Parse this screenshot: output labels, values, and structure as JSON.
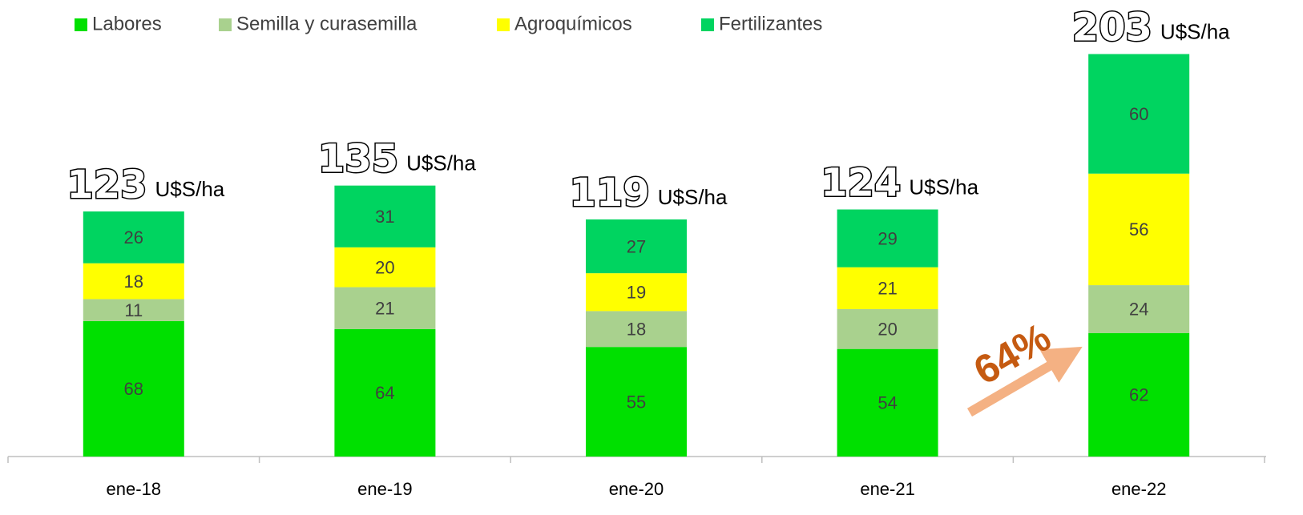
{
  "chart_data": {
    "type": "stacked_bar",
    "categories": [
      "ene-18",
      "ene-19",
      "ene-20",
      "ene-21",
      "ene-22"
    ],
    "series": [
      {
        "name": "Labores",
        "color": "#00e000",
        "values": [
          68,
          64,
          55,
          54,
          62
        ]
      },
      {
        "name": "Semilla y curasemilla",
        "color": "#a9d18e",
        "values": [
          11,
          21,
          18,
          20,
          24
        ]
      },
      {
        "name": "Agroquímicos",
        "color": "#ffff00",
        "values": [
          18,
          20,
          19,
          21,
          56
        ]
      },
      {
        "name": "Fertilizantes",
        "color": "#00d460",
        "values": [
          26,
          31,
          27,
          29,
          60
        ]
      }
    ],
    "totals": [
      123,
      135,
      119,
      124,
      203
    ],
    "total_unit": "U$S/ha",
    "annotation": "64%",
    "legend": "top-left"
  }
}
